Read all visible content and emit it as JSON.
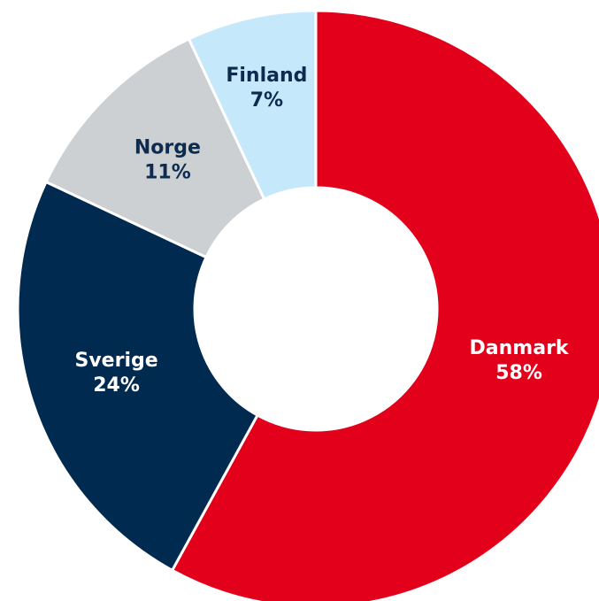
{
  "chart_data": {
    "type": "donut",
    "categories": [
      "Danmark",
      "Sverige",
      "Norge",
      "Finland"
    ],
    "values": [
      58,
      24,
      11,
      7
    ],
    "value_labels": [
      "58%",
      "24%",
      "11%",
      "7%"
    ],
    "colors": [
      "#e2001a",
      "#002a50",
      "#cdd0d2",
      "#c6e8fb"
    ],
    "label_colors": [
      "#ffffff",
      "#ffffff",
      "#0d2b4e",
      "#0d2b4e"
    ]
  }
}
